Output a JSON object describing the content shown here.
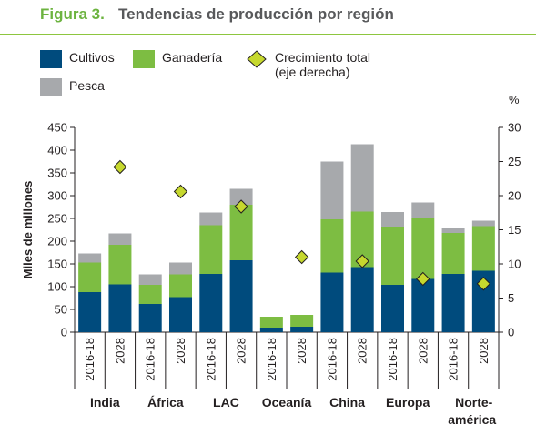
{
  "figure": {
    "number": "Figura 3.",
    "title": "Tendencias de producción por región"
  },
  "chart_data": {
    "type": "bar",
    "stacked": true,
    "groups": [
      "India",
      "África",
      "LAC",
      "Oceanía",
      "China",
      "Europa",
      "Norte-américa"
    ],
    "periods": [
      "2016-18",
      "2028"
    ],
    "series": [
      {
        "name": "Cultivos",
        "color": "#004b7d",
        "values": [
          [
            88,
            105
          ],
          [
            62,
            77
          ],
          [
            128,
            158
          ],
          [
            10,
            12
          ],
          [
            131,
            143
          ],
          [
            104,
            117
          ],
          [
            128,
            135
          ]
        ]
      },
      {
        "name": "Ganadería",
        "color": "#7dbd42",
        "values": [
          [
            65,
            87
          ],
          [
            42,
            50
          ],
          [
            107,
            122
          ],
          [
            24,
            26
          ],
          [
            117,
            122
          ],
          [
            128,
            133
          ],
          [
            90,
            98
          ]
        ]
      },
      {
        "name": "Pesca",
        "color": "#a7a9ac",
        "values": [
          [
            20,
            25
          ],
          [
            23,
            26
          ],
          [
            28,
            35
          ],
          [
            0,
            0
          ],
          [
            127,
            148
          ],
          [
            32,
            35
          ],
          [
            10,
            12
          ]
        ]
      }
    ],
    "growth": {
      "name": "Crecimiento total\n(eje derecha)",
      "color": "#c6d82e",
      "values": [
        null,
        24.2,
        null,
        20.6,
        null,
        18.4,
        null,
        11.0,
        null,
        10.4,
        null,
        7.8,
        null,
        7.1
      ]
    },
    "ylabel": "Miles de millones",
    "ylim": [
      0,
      450
    ],
    "yticks": [
      0,
      50,
      100,
      150,
      200,
      250,
      300,
      350,
      400,
      450
    ],
    "y2label": "%",
    "y2lim": [
      0,
      30
    ],
    "y2ticks": [
      0,
      5,
      10,
      15,
      20,
      25,
      30
    ],
    "legend_position": "top"
  }
}
